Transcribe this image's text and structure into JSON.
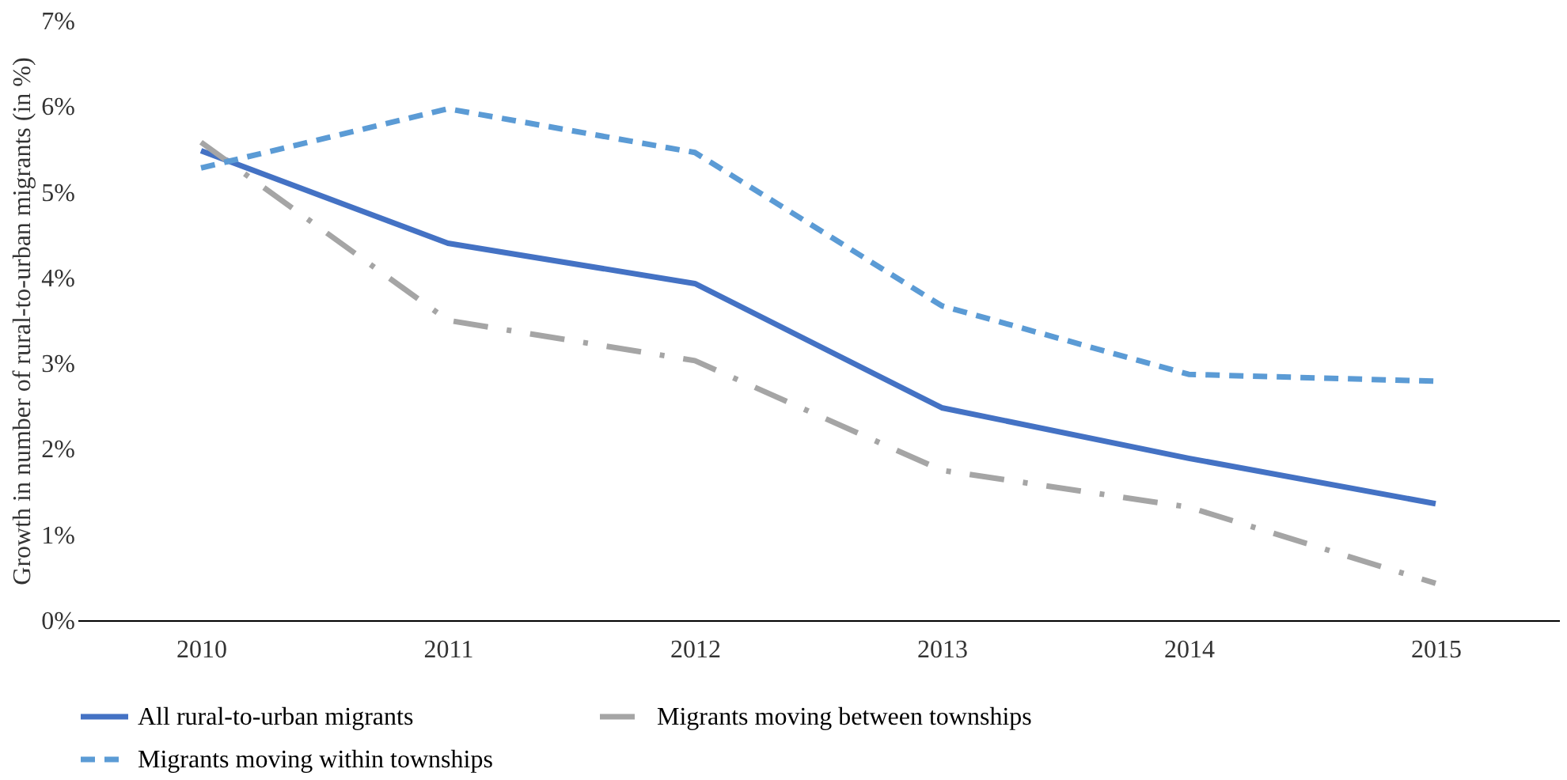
{
  "chart_data": {
    "type": "line",
    "ylabel": "Growth in number of rural-to-urban migrants (in %)",
    "categories": [
      "2010",
      "2011",
      "2012",
      "2013",
      "2014",
      "2015"
    ],
    "series": [
      {
        "name": "All rural-to-urban migrants",
        "color": "#4472c4",
        "line_style": "solid",
        "values": [
          5.48,
          4.4,
          3.93,
          2.48,
          1.89,
          1.36
        ]
      },
      {
        "name": "Migrants moving between townships",
        "color": "#a5a5a5",
        "line_style": "dashdot",
        "values": [
          5.58,
          3.5,
          3.03,
          1.75,
          1.32,
          0.43
        ]
      },
      {
        "name": "Migrants moving within townships",
        "color": "#5b9bd5",
        "line_style": "dashed",
        "values": [
          5.28,
          5.97,
          5.46,
          3.67,
          2.87,
          2.79
        ]
      }
    ],
    "ylim": [
      0,
      7
    ],
    "yticks": [
      {
        "value": 0,
        "label": "0%"
      },
      {
        "value": 1,
        "label": "1%"
      },
      {
        "value": 2,
        "label": "2%"
      },
      {
        "value": 3,
        "label": "3%"
      },
      {
        "value": 4,
        "label": "4%"
      },
      {
        "value": 5,
        "label": "5%"
      },
      {
        "value": 6,
        "label": "6%"
      },
      {
        "value": 7,
        "label": "7%"
      }
    ],
    "grid": false,
    "legend": "bottom",
    "marker": "none"
  }
}
